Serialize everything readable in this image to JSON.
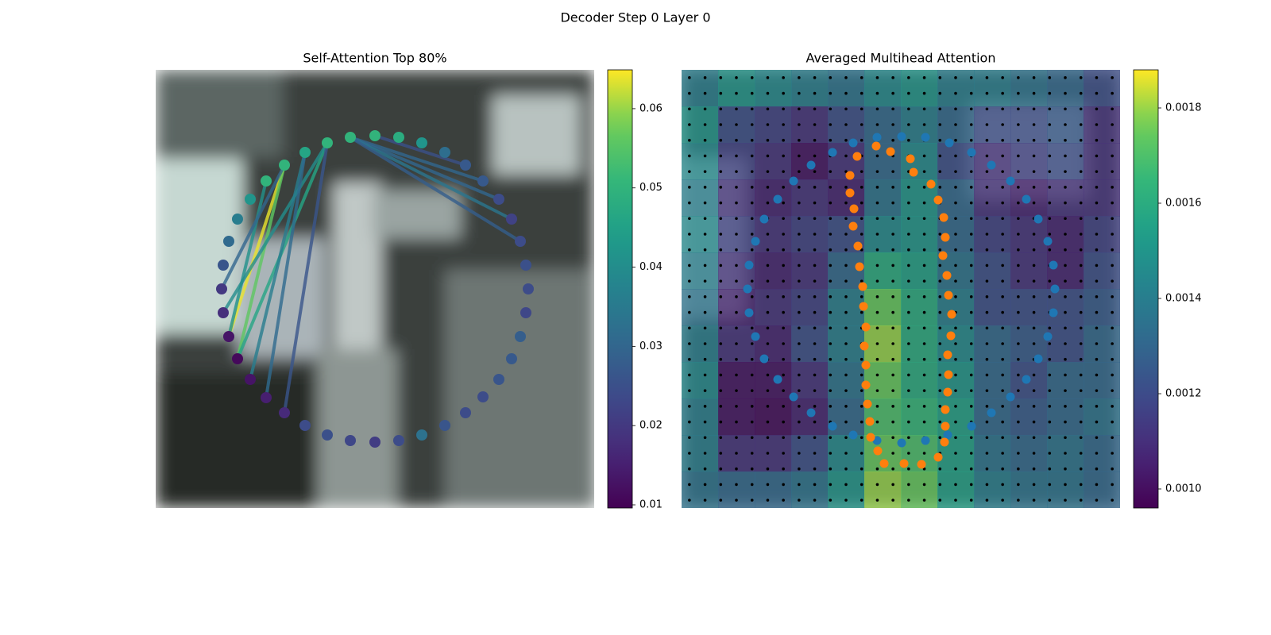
{
  "title": "Decoder Step 0 Layer 0",
  "chart_data": [
    {
      "type": "scatter",
      "title": "Self-Attention Top 80%",
      "colormap": "viridis",
      "xlim": [
        0,
        552
      ],
      "ylim": [
        552,
        0
      ],
      "x": [
        245,
        276,
        306,
        335,
        364,
        390,
        412,
        432,
        448,
        459,
        466,
        469,
        466,
        459,
        448,
        432,
        412,
        390,
        364,
        335,
        306,
        276,
        245,
        216,
        188,
        162,
        139,
        119,
        103,
        92,
        85,
        83,
        85,
        92,
        103,
        119,
        139,
        162,
        188,
        216
      ],
      "y": [
        85,
        83,
        85,
        92,
        104,
        120,
        140,
        163,
        188,
        216,
        246,
        276,
        306,
        336,
        364,
        390,
        412,
        432,
        448,
        460,
        467,
        469,
        467,
        460,
        448,
        432,
        413,
        390,
        364,
        336,
        306,
        276,
        246,
        216,
        188,
        163,
        140,
        120,
        104,
        92
      ],
      "values": [
        0.05,
        0.05,
        0.048,
        0.042,
        0.032,
        0.027,
        0.027,
        0.024,
        0.022,
        0.024,
        0.025,
        0.024,
        0.023,
        0.028,
        0.027,
        0.026,
        0.024,
        0.024,
        0.026,
        0.033,
        0.024,
        0.021,
        0.023,
        0.025,
        0.024,
        0.017,
        0.015,
        0.013,
        0.011,
        0.013,
        0.018,
        0.02,
        0.026,
        0.031,
        0.036,
        0.042,
        0.05,
        0.05,
        0.046,
        0.05
      ],
      "edges": {
        "source": [
          29,
          28,
          28,
          29,
          30,
          27,
          26,
          25,
          31,
          0,
          0,
          0,
          0,
          1
        ],
        "target": [
          37,
          37,
          39,
          36,
          39,
          38,
          38,
          39,
          37,
          6,
          7,
          8,
          9,
          5
        ],
        "values": [
          0.064,
          0.056,
          0.046,
          0.041,
          0.04,
          0.036,
          0.031,
          0.026,
          0.03,
          0.03,
          0.03,
          0.034,
          0.028,
          0.025
        ]
      },
      "clim": [
        0.0096,
        0.0649
      ],
      "cticks": [
        0.01,
        0.02,
        0.03,
        0.04,
        0.05,
        0.06
      ]
    },
    {
      "type": "heatmap",
      "title": "Averaged Multihead Attention",
      "colormap": "viridis",
      "xlim": [
        0,
        552
      ],
      "ylim": [
        552,
        0
      ],
      "z": [
        [
          0.0014,
          0.0015,
          0.00145,
          0.0014,
          0.00135,
          0.00145,
          0.0015,
          0.0014,
          0.0014,
          0.00135,
          0.0013,
          0.0012
        ],
        [
          0.0015,
          0.0012,
          0.00115,
          0.0011,
          0.0012,
          0.0013,
          0.0014,
          0.0013,
          0.0012,
          0.0012,
          0.00125,
          0.0011
        ],
        [
          0.00145,
          0.00115,
          0.0011,
          0.001,
          0.0011,
          0.0013,
          0.00145,
          0.0012,
          0.0011,
          0.00115,
          0.0012,
          0.0011
        ],
        [
          0.0014,
          0.0011,
          0.00105,
          0.0011,
          0.00105,
          0.00135,
          0.0015,
          0.0013,
          0.0011,
          0.00105,
          0.0011,
          0.0011
        ],
        [
          0.00145,
          0.00115,
          0.0011,
          0.00115,
          0.0012,
          0.00145,
          0.0015,
          0.0013,
          0.00115,
          0.0011,
          0.00105,
          0.00115
        ],
        [
          0.0014,
          0.0011,
          0.00105,
          0.0011,
          0.0013,
          0.0016,
          0.00155,
          0.00135,
          0.0012,
          0.0011,
          0.00105,
          0.0012
        ],
        [
          0.00135,
          0.00105,
          0.0011,
          0.00115,
          0.0014,
          0.00175,
          0.0016,
          0.0014,
          0.0012,
          0.0012,
          0.0012,
          0.00125
        ],
        [
          0.0014,
          0.0011,
          0.00105,
          0.0012,
          0.0014,
          0.0018,
          0.0016,
          0.00145,
          0.0013,
          0.00125,
          0.0012,
          0.0013
        ],
        [
          0.00145,
          0.001,
          0.001,
          0.0011,
          0.00135,
          0.00175,
          0.0016,
          0.0015,
          0.0013,
          0.0012,
          0.0013,
          0.0013
        ],
        [
          0.0014,
          0.001,
          0.00098,
          0.00105,
          0.0013,
          0.0017,
          0.00165,
          0.00155,
          0.0013,
          0.00125,
          0.0013,
          0.00135
        ],
        [
          0.0014,
          0.0011,
          0.0011,
          0.0012,
          0.00145,
          0.00175,
          0.0017,
          0.00155,
          0.00135,
          0.0013,
          0.00135,
          0.0013
        ],
        [
          0.00135,
          0.0013,
          0.0013,
          0.00135,
          0.0015,
          0.0018,
          0.00175,
          0.00155,
          0.0014,
          0.00135,
          0.00135,
          0.0013
        ]
      ],
      "series": [
        {
          "color": "#1f77b4",
          "x": [
            246,
            277,
            307,
            337,
            365,
            390,
            414,
            434,
            449,
            461,
            468,
            470,
            468,
            461,
            449,
            434,
            414,
            390,
            365,
            335,
            307,
            277,
            246,
            216,
            190,
            163,
            141,
            121,
            104,
            93,
            85,
            83,
            85,
            93,
            104,
            121,
            141,
            163,
            190,
            216
          ],
          "y": [
            85,
            84,
            85,
            92,
            104,
            120,
            140,
            163,
            188,
            216,
            246,
            276,
            306,
            336,
            364,
            390,
            412,
            432,
            449,
            460,
            467,
            470,
            467,
            460,
            449,
            432,
            412,
            390,
            364,
            336,
            306,
            276,
            246,
            216,
            188,
            163,
            140,
            120,
            104,
            92
          ]
        },
        {
          "color": "#ff7f0e",
          "x": [
            221,
            245,
            263,
            288,
            292,
            314,
            323,
            330,
            332,
            329,
            334,
            336,
            340,
            339,
            335,
            336,
            335,
            332,
            332,
            331,
            323,
            302,
            280,
            255,
            247,
            238,
            237,
            234,
            232,
            232,
            230,
            232,
            229,
            228,
            224,
            222,
            216,
            217,
            212,
            212
          ],
          "y": [
            109,
            96,
            103,
            112,
            129,
            144,
            164,
            186,
            211,
            234,
            259,
            284,
            308,
            335,
            359,
            384,
            406,
            428,
            449,
            469,
            488,
            497,
            496,
            496,
            480,
            463,
            443,
            421,
            397,
            372,
            348,
            324,
            298,
            273,
            248,
            222,
            197,
            175,
            155,
            133
          ]
        }
      ],
      "clim": [
        0.00096,
        0.00188
      ],
      "cticks": [
        {
          "value": 0.001,
          "label": "0.0010"
        },
        0.0012,
        0.0014,
        0.0016,
        0.0018
      ]
    }
  ]
}
